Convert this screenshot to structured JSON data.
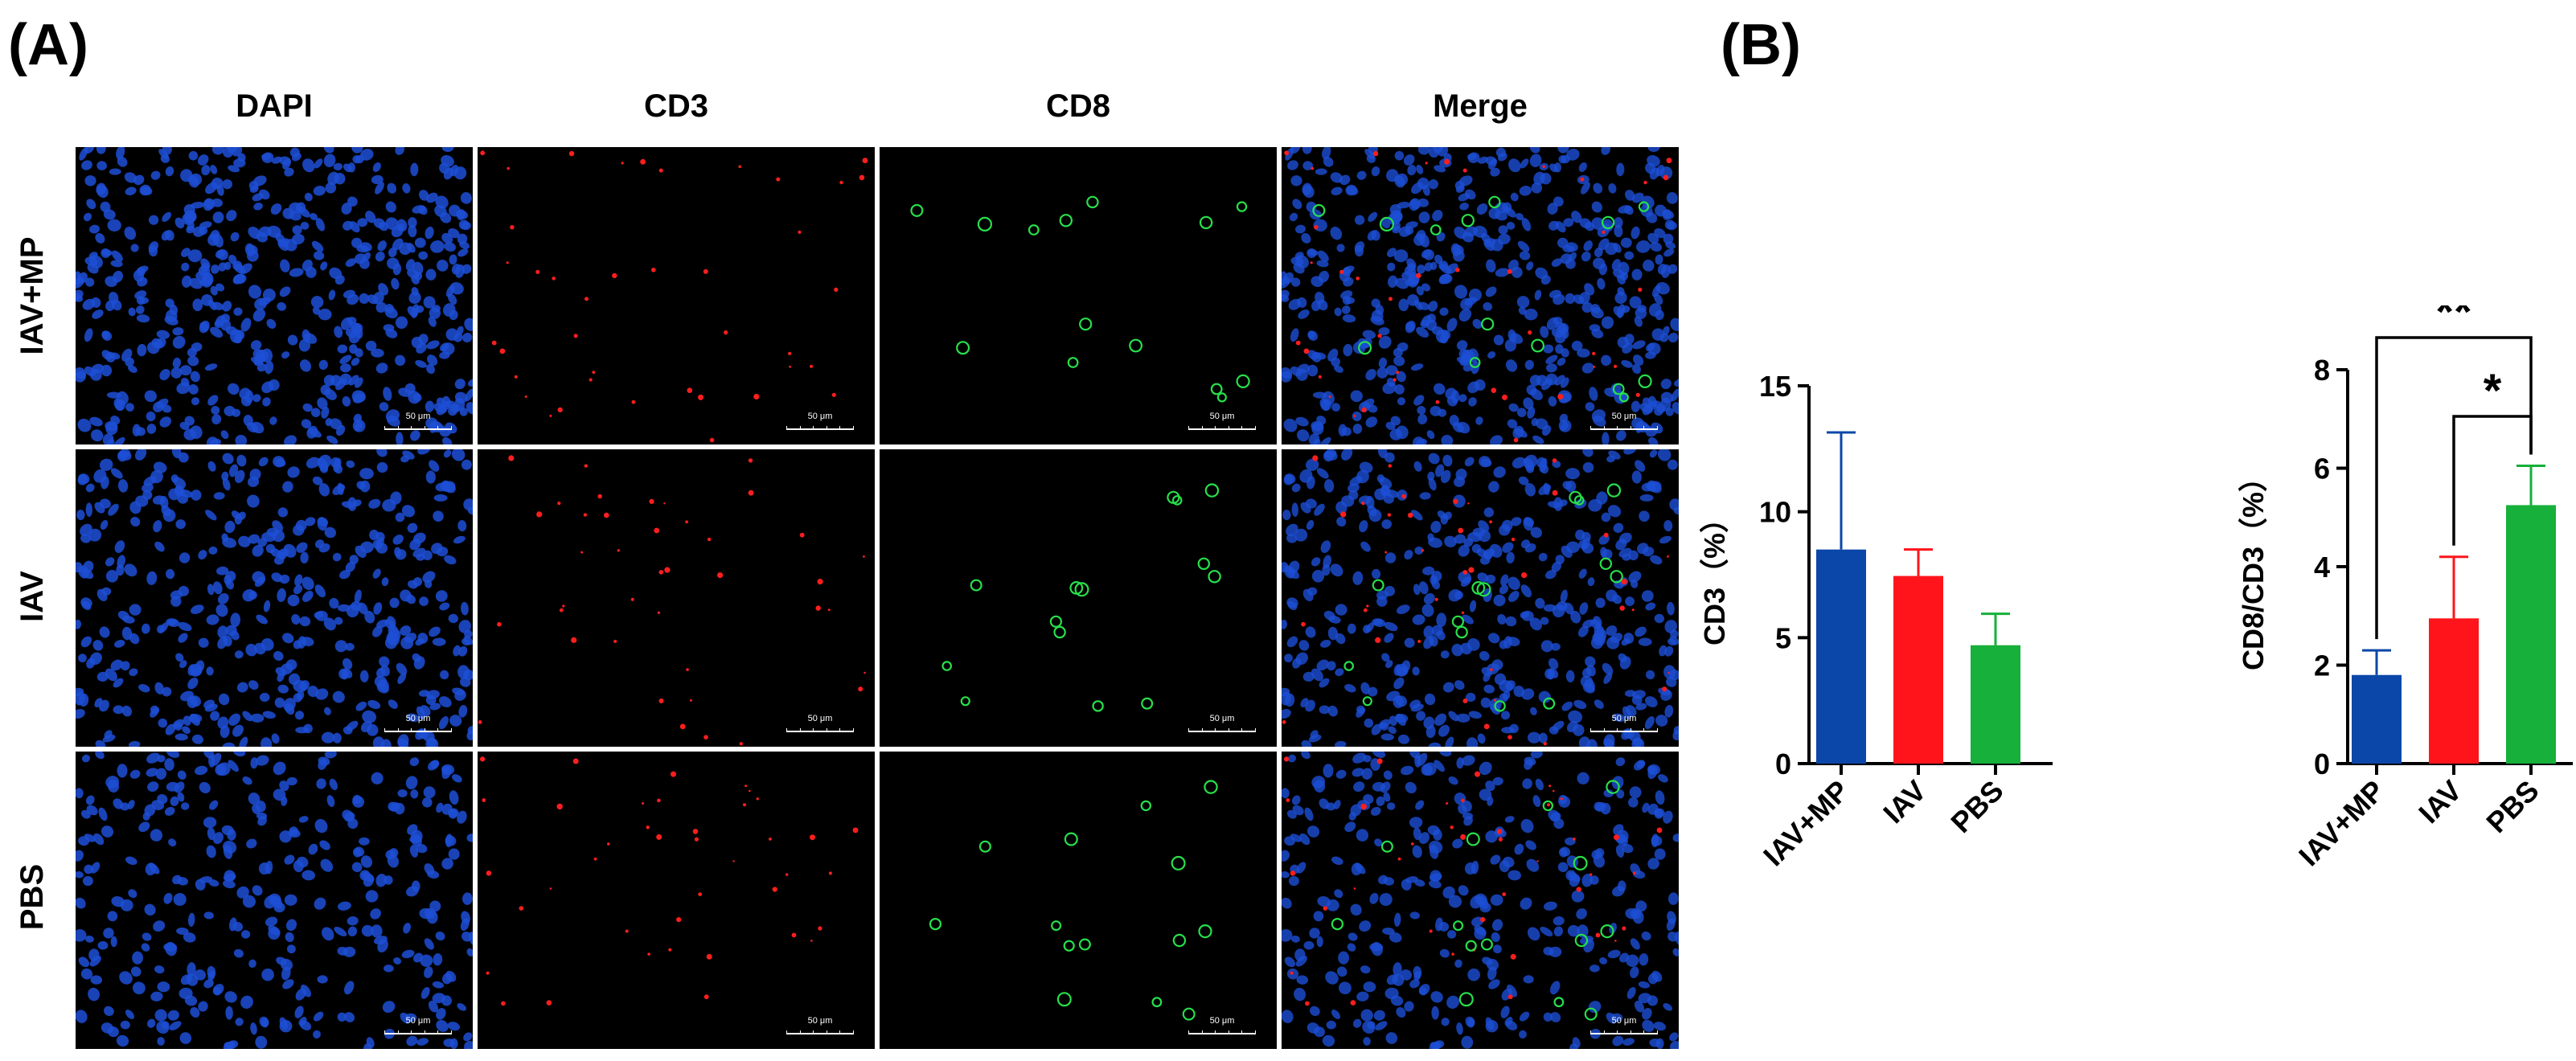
{
  "panels": {
    "a_label": "(A)",
    "b_label": "(B)"
  },
  "micrograph_grid": {
    "columns": [
      {
        "label": "DAPI",
        "color": "#1f6fd1"
      },
      {
        "label": "CD3",
        "color": "#e8141b"
      },
      {
        "label": "CD8",
        "color": "#14b428"
      },
      {
        "label": "Merge",
        "color": "#000000"
      }
    ],
    "rows": [
      "IAV+MP",
      "IAV",
      "PBS"
    ],
    "scale_bar_label": "50 μm"
  },
  "chart_data": [
    {
      "type": "bar",
      "categories": [
        "IAV+MP",
        "IAV",
        "PBS"
      ],
      "values": [
        8.5,
        7.45,
        4.7
      ],
      "errors": [
        4.65,
        1.05,
        1.25
      ],
      "colors": [
        "#0b47a8",
        "#ff141b",
        "#16b03a"
      ],
      "title": "",
      "xlabel": "",
      "ylabel": "CD3（%）",
      "ylim": [
        0,
        15
      ],
      "yticks": [
        "0",
        "5",
        "10",
        "15"
      ],
      "grid": false
    },
    {
      "type": "bar",
      "categories": [
        "IAV+MP",
        "IAV",
        "PBS"
      ],
      "values": [
        1.8,
        2.95,
        5.25
      ],
      "errors": [
        0.5,
        1.25,
        0.8
      ],
      "colors": [
        "#0b47a8",
        "#ff141b",
        "#16b03a"
      ],
      "title": "",
      "xlabel": "",
      "ylabel": "CD8/CD3（%）",
      "ylim": [
        0,
        8
      ],
      "yticks": [
        "0",
        "2",
        "4",
        "6",
        "8"
      ],
      "grid": false,
      "significance": [
        {
          "from": "IAV+MP",
          "to": "PBS",
          "label": "**"
        },
        {
          "from": "IAV",
          "to": "PBS",
          "label": "*"
        }
      ]
    }
  ]
}
